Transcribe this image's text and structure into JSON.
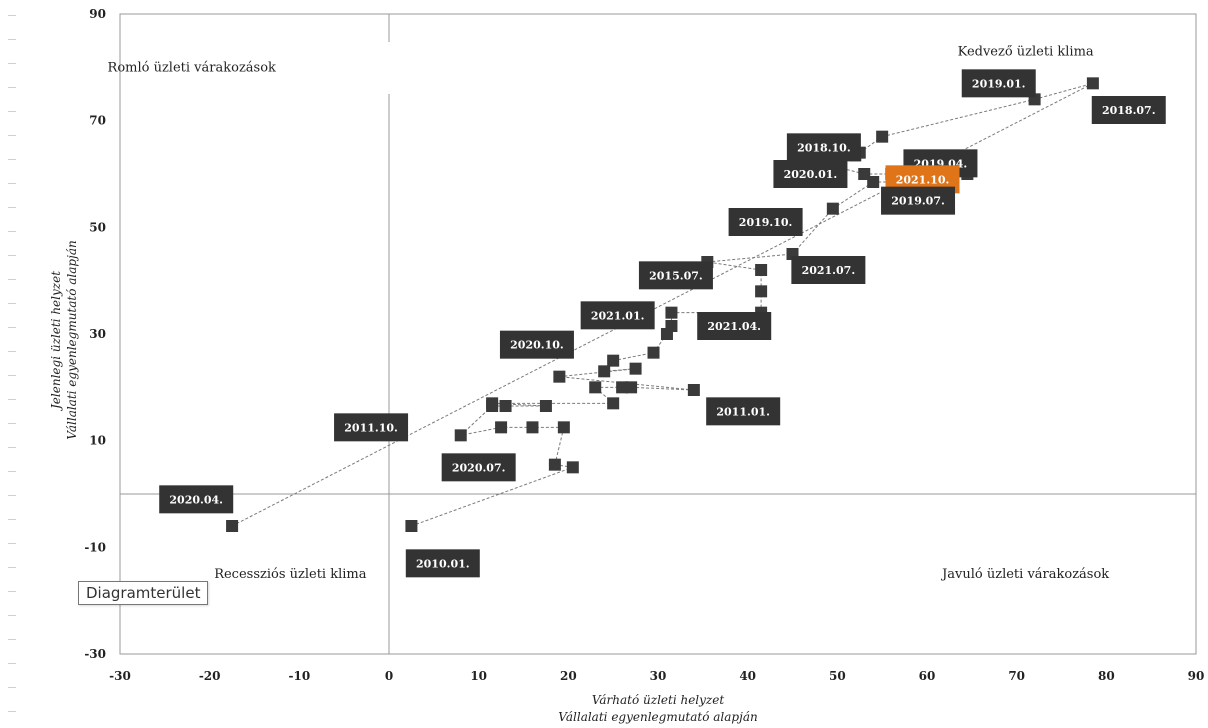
{
  "chart_data": {
    "type": "scatter",
    "xlabel_lines": [
      "Várható üzleti helyzet",
      "Vállalati egyenlegmutató alapján"
    ],
    "ylabel_lines": [
      "Jelenlegi üzleti helyzet",
      "Vállalati egyenlegmutató alapján"
    ],
    "xlim": [
      -30,
      90
    ],
    "ylim": [
      -30,
      90
    ],
    "x_ticks": [
      -30,
      -20,
      -10,
      0,
      10,
      20,
      30,
      40,
      50,
      60,
      70,
      80,
      90
    ],
    "y_ticks": [
      90,
      70,
      50,
      30,
      10,
      -10,
      -30
    ],
    "grid": false,
    "quadrant_labels": [
      {
        "text": "Romló üzleti várakozások",
        "x": -22,
        "y": 80
      },
      {
        "text": "Kedvező üzleti klima",
        "x": 71,
        "y": 83
      },
      {
        "text": "Recessziós üzleti klima",
        "x": -11,
        "y": -15
      },
      {
        "text": "Javuló üzleti várakozások",
        "x": 71,
        "y": -15
      }
    ],
    "points": [
      [
        2.5,
        -6
      ],
      [
        20.5,
        5
      ],
      [
        18.5,
        5.5
      ],
      [
        19.5,
        12.5
      ],
      [
        16,
        12.5
      ],
      [
        12.5,
        12.5
      ],
      [
        8,
        11
      ],
      [
        11.5,
        16.5
      ],
      [
        13,
        16.5
      ],
      [
        17.5,
        16.5
      ],
      [
        11.5,
        17
      ],
      [
        25,
        17
      ],
      [
        23,
        20
      ],
      [
        26,
        20
      ],
      [
        27,
        20
      ],
      [
        34,
        19.5
      ],
      [
        19,
        22
      ],
      [
        27.5,
        23.5
      ],
      [
        24,
        23
      ],
      [
        25,
        25
      ],
      [
        29.5,
        26.5
      ],
      [
        31,
        30
      ],
      [
        31.5,
        31.5
      ],
      [
        31.5,
        34
      ],
      [
        41.5,
        34
      ],
      [
        41.5,
        38
      ],
      [
        41.5,
        42
      ],
      [
        35.5,
        43.5
      ],
      [
        45,
        45
      ],
      [
        49.5,
        53.5
      ],
      [
        54,
        58.5
      ],
      [
        60,
        58.5
      ],
      [
        64.5,
        60
      ],
      [
        53,
        60
      ],
      [
        49.5,
        61.5
      ],
      [
        49.5,
        63
      ],
      [
        52,
        63.5
      ],
      [
        52.5,
        64
      ],
      [
        55,
        67
      ],
      [
        72,
        74
      ],
      [
        78.5,
        77
      ],
      [
        -17.5,
        -6
      ]
    ],
    "highlight_points": [
      [
        56,
        60
      ]
    ],
    "point_labels": [
      {
        "text": "2019.01.",
        "x": 68,
        "y": 77
      },
      {
        "text": "2018.07.",
        "x": 82.5,
        "y": 72
      },
      {
        "text": "2018.10.",
        "x": 48.5,
        "y": 65
      },
      {
        "text": "2020.01.",
        "x": 47,
        "y": 60
      },
      {
        "text": "2019.04.",
        "x": 61.5,
        "y": 62
      },
      {
        "text": "2021.10.",
        "x": 59.5,
        "y": 59,
        "highlight": true
      },
      {
        "text": "2019.07.",
        "x": 59,
        "y": 55
      },
      {
        "text": "2019.10.",
        "x": 42,
        "y": 51
      },
      {
        "text": "2021.07.",
        "x": 49,
        "y": 42
      },
      {
        "text": "2015.07.",
        "x": 32,
        "y": 41
      },
      {
        "text": "2021.01.",
        "x": 25.5,
        "y": 33.5
      },
      {
        "text": "2021.04.",
        "x": 38.5,
        "y": 31.5
      },
      {
        "text": "2020.10.",
        "x": 16.5,
        "y": 28
      },
      {
        "text": "2011.01.",
        "x": 39.5,
        "y": 15.5
      },
      {
        "text": "2011.10.",
        "x": -2,
        "y": 12.5
      },
      {
        "text": "2020.07.",
        "x": 10,
        "y": 5
      },
      {
        "text": "2020.04.",
        "x": -21.5,
        "y": -1
      },
      {
        "text": "2010.01.",
        "x": 6,
        "y": -13
      }
    ],
    "colors": {
      "marker": "#3a3a3a",
      "label_bg": "#333333",
      "highlight": "#e07418",
      "line": "#7a7a7a"
    }
  },
  "tooltip": "Diagramterület"
}
